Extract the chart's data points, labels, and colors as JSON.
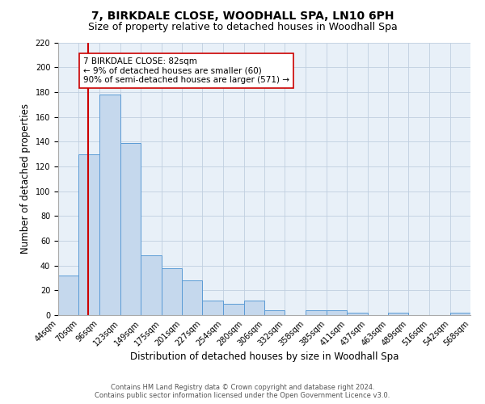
{
  "title": "7, BIRKDALE CLOSE, WOODHALL SPA, LN10 6PH",
  "subtitle": "Size of property relative to detached houses in Woodhall Spa",
  "xlabel": "Distribution of detached houses by size in Woodhall Spa",
  "ylabel": "Number of detached properties",
  "bin_edges": [
    44,
    70,
    96,
    123,
    149,
    175,
    201,
    227,
    254,
    280,
    306,
    332,
    358,
    385,
    411,
    437,
    463,
    489,
    516,
    542,
    568
  ],
  "bin_heights": [
    32,
    130,
    178,
    139,
    48,
    38,
    28,
    12,
    9,
    12,
    4,
    0,
    4,
    4,
    2,
    0,
    2,
    0,
    0,
    2
  ],
  "bar_color": "#c5d8ed",
  "bar_edge_color": "#5b9bd5",
  "vline_color": "#cc0000",
  "vline_x": 82,
  "annotation_text": "7 BIRKDALE CLOSE: 82sqm\n← 9% of detached houses are smaller (60)\n90% of semi-detached houses are larger (571) →",
  "annotation_box_edgecolor": "#cc0000",
  "annotation_box_facecolor": "#ffffff",
  "ylim": [
    0,
    220
  ],
  "yticks": [
    0,
    20,
    40,
    60,
    80,
    100,
    120,
    140,
    160,
    180,
    200,
    220
  ],
  "tick_labels": [
    "44sqm",
    "70sqm",
    "96sqm",
    "123sqm",
    "149sqm",
    "175sqm",
    "201sqm",
    "227sqm",
    "254sqm",
    "280sqm",
    "306sqm",
    "332sqm",
    "358sqm",
    "385sqm",
    "411sqm",
    "437sqm",
    "463sqm",
    "489sqm",
    "516sqm",
    "542sqm",
    "568sqm"
  ],
  "footer_line1": "Contains HM Land Registry data © Crown copyright and database right 2024.",
  "footer_line2": "Contains public sector information licensed under the Open Government Licence v3.0.",
  "background_color": "#ffffff",
  "plot_bg_color": "#e8f0f8",
  "grid_color": "#c0cfe0",
  "title_fontsize": 10,
  "subtitle_fontsize": 9,
  "axis_label_fontsize": 8.5,
  "tick_fontsize": 7,
  "annotation_fontsize": 7.5,
  "footer_fontsize": 6
}
